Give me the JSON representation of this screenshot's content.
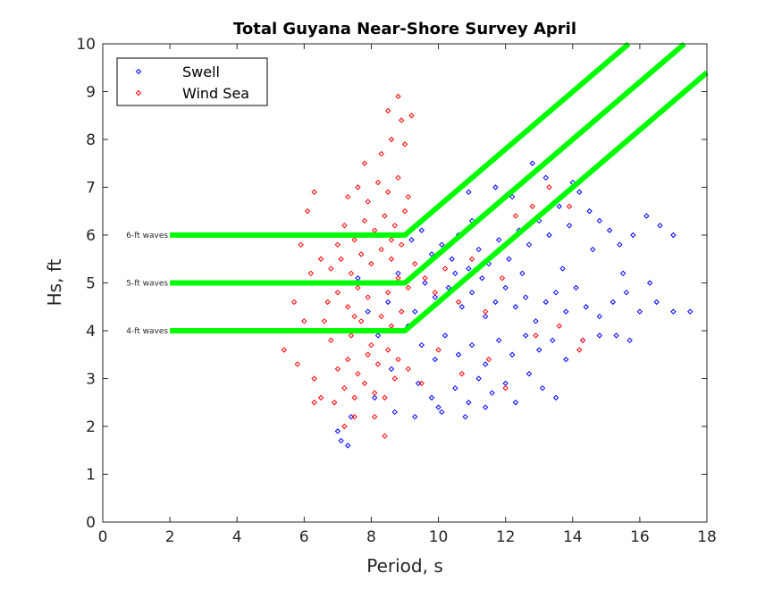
{
  "chart_data": {
    "type": "scatter",
    "title": "Total Guyana Near-Shore Survey April",
    "xlabel": "Period, s",
    "ylabel": "Hs, ft",
    "xlim": [
      0,
      18
    ],
    "ylim": [
      0,
      10
    ],
    "xticks": [
      0,
      2,
      4,
      6,
      8,
      10,
      12,
      14,
      16,
      18
    ],
    "yticks": [
      0,
      1,
      2,
      3,
      4,
      5,
      6,
      7,
      8,
      9,
      10
    ],
    "grid": false,
    "legend_placement": "top-left",
    "marker": "diamond",
    "series": [
      {
        "name": "Swell",
        "color": "#0000ff",
        "points": [
          [
            9.2,
            5.9
          ],
          [
            9.5,
            6.1
          ],
          [
            9.8,
            5.6
          ],
          [
            10.1,
            5.8
          ],
          [
            10.4,
            5.5
          ],
          [
            10.6,
            6.0
          ],
          [
            10.9,
            5.3
          ],
          [
            11.2,
            5.7
          ],
          [
            11.5,
            5.4
          ],
          [
            11.8,
            5.9
          ],
          [
            12.1,
            5.5
          ],
          [
            12.4,
            6.1
          ],
          [
            12.7,
            5.8
          ],
          [
            13.0,
            6.3
          ],
          [
            13.3,
            6.0
          ],
          [
            13.6,
            6.6
          ],
          [
            13.9,
            6.2
          ],
          [
            14.2,
            6.9
          ],
          [
            14.5,
            6.5
          ],
          [
            14.8,
            6.3
          ],
          [
            15.1,
            6.1
          ],
          [
            15.4,
            5.8
          ],
          [
            15.8,
            6.0
          ],
          [
            16.2,
            6.4
          ],
          [
            16.6,
            6.2
          ],
          [
            17.0,
            6.0
          ],
          [
            12.8,
            7.5
          ],
          [
            13.2,
            7.2
          ],
          [
            11.7,
            7.0
          ],
          [
            10.9,
            6.9
          ],
          [
            9.6,
            5.0
          ],
          [
            9.9,
            4.7
          ],
          [
            10.3,
            4.9
          ],
          [
            10.7,
            4.5
          ],
          [
            11.0,
            4.8
          ],
          [
            11.4,
            4.3
          ],
          [
            11.7,
            4.6
          ],
          [
            12.0,
            4.9
          ],
          [
            12.3,
            4.5
          ],
          [
            12.6,
            4.7
          ],
          [
            12.9,
            4.2
          ],
          [
            13.2,
            4.6
          ],
          [
            13.5,
            4.8
          ],
          [
            13.8,
            4.4
          ],
          [
            14.1,
            4.9
          ],
          [
            14.4,
            4.5
          ],
          [
            14.8,
            4.3
          ],
          [
            15.2,
            4.6
          ],
          [
            15.6,
            4.8
          ],
          [
            16.0,
            4.4
          ],
          [
            16.5,
            4.6
          ],
          [
            17.0,
            4.4
          ],
          [
            17.5,
            4.4
          ],
          [
            9.5,
            3.7
          ],
          [
            9.9,
            3.4
          ],
          [
            10.2,
            3.9
          ],
          [
            10.6,
            3.5
          ],
          [
            11.0,
            3.7
          ],
          [
            11.4,
            3.3
          ],
          [
            11.8,
            3.8
          ],
          [
            12.2,
            3.5
          ],
          [
            12.6,
            3.9
          ],
          [
            13.0,
            3.6
          ],
          [
            13.4,
            3.8
          ],
          [
            13.8,
            3.4
          ],
          [
            14.3,
            3.8
          ],
          [
            14.8,
            3.9
          ],
          [
            15.3,
            3.9
          ],
          [
            15.7,
            3.8
          ],
          [
            9.4,
            2.9
          ],
          [
            9.8,
            2.6
          ],
          [
            10.1,
            2.3
          ],
          [
            10.5,
            2.8
          ],
          [
            10.9,
            2.5
          ],
          [
            11.2,
            3.0
          ],
          [
            11.6,
            2.7
          ],
          [
            12.0,
            2.9
          ],
          [
            12.3,
            2.5
          ],
          [
            12.7,
            3.1
          ],
          [
            13.1,
            2.8
          ],
          [
            13.5,
            2.6
          ],
          [
            9.3,
            2.2
          ],
          [
            10.0,
            2.4
          ],
          [
            10.8,
            2.2
          ],
          [
            11.4,
            2.4
          ],
          [
            8.8,
            5.2
          ],
          [
            8.5,
            4.6
          ],
          [
            8.2,
            3.9
          ],
          [
            7.9,
            4.4
          ],
          [
            7.6,
            5.1
          ],
          [
            8.6,
            3.2
          ],
          [
            8.1,
            2.6
          ],
          [
            7.4,
            2.2
          ],
          [
            7.0,
            1.9
          ],
          [
            7.3,
            1.6
          ],
          [
            7.1,
            1.7
          ],
          [
            8.7,
            2.3
          ],
          [
            9.1,
            4.1
          ],
          [
            9.3,
            4.4
          ],
          [
            10.5,
            5.2
          ],
          [
            11.3,
            5.1
          ],
          [
            12.5,
            5.2
          ],
          [
            13.7,
            5.3
          ],
          [
            14.6,
            5.7
          ],
          [
            15.5,
            5.2
          ],
          [
            16.3,
            5.0
          ],
          [
            14.0,
            7.1
          ],
          [
            12.2,
            6.8
          ],
          [
            11.0,
            6.3
          ]
        ]
      },
      {
        "name": "Wind Sea",
        "color": "#ff0000",
        "points": [
          [
            6.9,
            2.5
          ],
          [
            7.2,
            2.8
          ],
          [
            7.5,
            2.6
          ],
          [
            7.8,
            2.9
          ],
          [
            8.1,
            2.7
          ],
          [
            8.4,
            2.6
          ],
          [
            8.7,
            3.0
          ],
          [
            7.0,
            3.2
          ],
          [
            7.3,
            3.4
          ],
          [
            7.6,
            3.1
          ],
          [
            7.9,
            3.5
          ],
          [
            8.2,
            3.3
          ],
          [
            8.5,
            3.6
          ],
          [
            8.8,
            3.4
          ],
          [
            9.1,
            3.2
          ],
          [
            6.8,
            3.8
          ],
          [
            7.1,
            4.0
          ],
          [
            7.4,
            3.9
          ],
          [
            7.7,
            4.2
          ],
          [
            8.0,
            4.0
          ],
          [
            8.3,
            4.3
          ],
          [
            8.6,
            4.1
          ],
          [
            8.9,
            4.4
          ],
          [
            6.7,
            4.6
          ],
          [
            7.0,
            4.8
          ],
          [
            7.3,
            4.5
          ],
          [
            7.6,
            4.9
          ],
          [
            7.9,
            4.7
          ],
          [
            8.2,
            5.0
          ],
          [
            8.5,
            4.8
          ],
          [
            8.8,
            5.1
          ],
          [
            9.1,
            4.9
          ],
          [
            6.8,
            5.3
          ],
          [
            7.1,
            5.5
          ],
          [
            7.4,
            5.2
          ],
          [
            7.7,
            5.6
          ],
          [
            8.0,
            5.4
          ],
          [
            8.3,
            5.7
          ],
          [
            8.6,
            5.5
          ],
          [
            8.9,
            5.8
          ],
          [
            6.9,
            6.0
          ],
          [
            7.2,
            6.2
          ],
          [
            7.5,
            5.9
          ],
          [
            7.8,
            6.3
          ],
          [
            8.1,
            6.1
          ],
          [
            8.4,
            6.4
          ],
          [
            8.7,
            6.2
          ],
          [
            9.0,
            6.5
          ],
          [
            7.3,
            6.8
          ],
          [
            7.6,
            7.0
          ],
          [
            7.9,
            6.7
          ],
          [
            8.2,
            7.1
          ],
          [
            8.5,
            6.9
          ],
          [
            8.8,
            7.2
          ],
          [
            9.1,
            6.8
          ],
          [
            7.8,
            7.5
          ],
          [
            8.3,
            7.7
          ],
          [
            8.6,
            8.0
          ],
          [
            8.9,
            8.4
          ],
          [
            8.5,
            8.6
          ],
          [
            8.8,
            8.9
          ],
          [
            9.2,
            8.5
          ],
          [
            9.0,
            7.9
          ],
          [
            6.3,
            6.9
          ],
          [
            6.1,
            6.5
          ],
          [
            5.9,
            5.8
          ],
          [
            6.2,
            5.2
          ],
          [
            5.7,
            4.6
          ],
          [
            6.0,
            4.2
          ],
          [
            5.4,
            3.6
          ],
          [
            5.8,
            3.3
          ],
          [
            6.3,
            3.0
          ],
          [
            6.5,
            2.6
          ],
          [
            6.3,
            2.5
          ],
          [
            7.5,
            2.2
          ],
          [
            8.1,
            2.2
          ],
          [
            8.4,
            1.8
          ],
          [
            7.2,
            2.0
          ],
          [
            9.3,
            5.4
          ],
          [
            9.6,
            5.1
          ],
          [
            9.9,
            4.8
          ],
          [
            10.2,
            5.3
          ],
          [
            10.6,
            4.6
          ],
          [
            11.0,
            5.5
          ],
          [
            11.4,
            4.4
          ],
          [
            11.9,
            5.1
          ],
          [
            12.3,
            6.4
          ],
          [
            12.8,
            6.6
          ],
          [
            13.3,
            7.0
          ],
          [
            13.9,
            6.6
          ],
          [
            10.0,
            3.6
          ],
          [
            10.7,
            3.1
          ],
          [
            11.5,
            3.4
          ],
          [
            12.0,
            2.8
          ],
          [
            12.9,
            3.9
          ],
          [
            13.6,
            4.1
          ],
          [
            14.2,
            3.6
          ],
          [
            14.3,
            3.8
          ],
          [
            9.5,
            2.9
          ],
          [
            8.0,
            3.7
          ],
          [
            7.5,
            4.3
          ],
          [
            8.6,
            5.9
          ],
          [
            7.0,
            5.8
          ],
          [
            6.6,
            4.2
          ],
          [
            6.5,
            5.5
          ]
        ]
      }
    ],
    "reference_lines": [
      {
        "label": "6-ft waves",
        "color": "#00ff00",
        "points": [
          [
            2,
            6
          ],
          [
            9,
            6
          ],
          [
            15.67,
            10
          ]
        ]
      },
      {
        "label": "5-ft waves",
        "color": "#00ff00",
        "points": [
          [
            2,
            5
          ],
          [
            9,
            5
          ],
          [
            17.33,
            10
          ]
        ]
      },
      {
        "label": "4-ft waves",
        "color": "#00ff00",
        "points": [
          [
            2,
            4
          ],
          [
            9,
            4
          ],
          [
            18,
            9.4
          ]
        ]
      }
    ]
  }
}
